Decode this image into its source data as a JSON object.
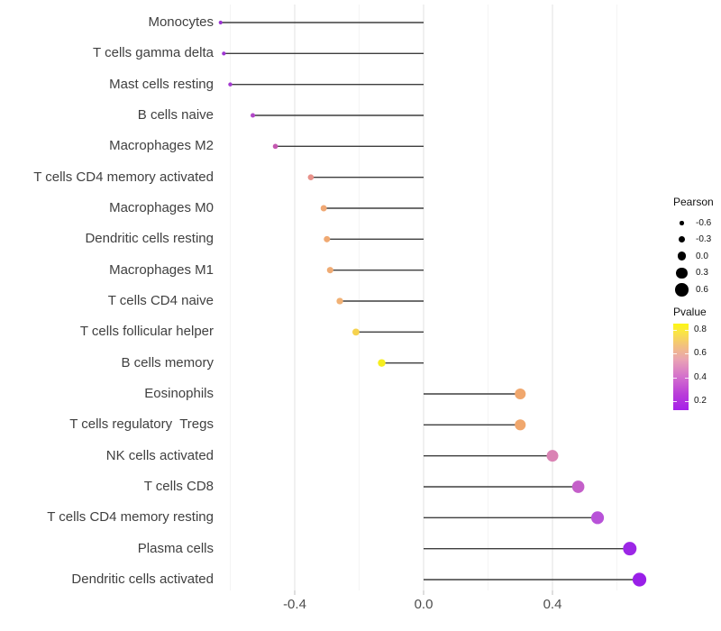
{
  "figure": {
    "background": "#ffffff"
  },
  "styles": {
    "segment_color": "#3e3e3e",
    "grid_major_color": "#e8e8e8",
    "grid_minor_color": "#f4f4f4",
    "axis_tick_color": "#c8c8c8",
    "axis_text_color": "#4d4d4d",
    "legend_dot_color": "#000000"
  },
  "chart_data": {
    "type": "lollipop",
    "orientation": "horizontal",
    "title": "",
    "xlabel": "",
    "ylabel": "",
    "xlim": [
      -0.65,
      0.73
    ],
    "x_major_ticks": [
      -0.4,
      0.0,
      0.4
    ],
    "x_tick_labels": [
      "-0.4",
      "0.0",
      "0.4"
    ],
    "x_minor_ticks": [
      -0.6,
      -0.2,
      0.2,
      0.6
    ],
    "baseline": 0.0,
    "grid": "vertical-only",
    "points": [
      {
        "label": "Monocytes",
        "pearson": -0.63,
        "pvalue": 0.2,
        "color": "#9c35d2"
      },
      {
        "label": "T cells gamma delta",
        "pearson": -0.62,
        "pvalue": 0.2,
        "color": "#9e35d2"
      },
      {
        "label": "Mast cells resting",
        "pearson": -0.6,
        "pvalue": 0.21,
        "color": "#a43bd0"
      },
      {
        "label": "B cells naive",
        "pearson": -0.53,
        "pvalue": 0.26,
        "color": "#b248c8"
      },
      {
        "label": "Macrophages M2",
        "pearson": -0.46,
        "pvalue": 0.33,
        "color": "#c458b1"
      },
      {
        "label": "T cells CD4 memory activated",
        "pearson": -0.35,
        "pvalue": 0.52,
        "color": "#e8918a"
      },
      {
        "label": "Macrophages M0",
        "pearson": -0.31,
        "pvalue": 0.57,
        "color": "#f0a874"
      },
      {
        "label": "Dendritic cells resting",
        "pearson": -0.3,
        "pvalue": 0.57,
        "color": "#f0a972"
      },
      {
        "label": "Macrophages M1",
        "pearson": -0.29,
        "pvalue": 0.58,
        "color": "#efab74"
      },
      {
        "label": "T cells CD4 naive",
        "pearson": -0.26,
        "pvalue": 0.6,
        "color": "#f1b175"
      },
      {
        "label": "T cells follicular helper",
        "pearson": -0.21,
        "pvalue": 0.71,
        "color": "#f6d24e"
      },
      {
        "label": "B cells memory",
        "pearson": -0.13,
        "pvalue": 0.82,
        "color": "#f6ee1e"
      },
      {
        "label": "Eosinophils",
        "pearson": 0.3,
        "pvalue": 0.57,
        "color": "#f0a76d"
      },
      {
        "label": "T cells regulatory  Tregs",
        "pearson": 0.3,
        "pvalue": 0.57,
        "color": "#f0a76d"
      },
      {
        "label": "NK cells activated",
        "pearson": 0.4,
        "pvalue": 0.4,
        "color": "#da83b4"
      },
      {
        "label": "T cells CD8",
        "pearson": 0.48,
        "pvalue": 0.31,
        "color": "#c45fc9"
      },
      {
        "label": "T cells CD4 memory resting",
        "pearson": 0.54,
        "pvalue": 0.27,
        "color": "#b852d8"
      },
      {
        "label": "Plasma cells",
        "pearson": 0.64,
        "pvalue": 0.17,
        "color": "#9c27e6"
      },
      {
        "label": "Dendritic cells activated",
        "pearson": 0.67,
        "pvalue": 0.15,
        "color": "#991fe8"
      }
    ],
    "legends": {
      "size": {
        "title": "Pearson",
        "entries": [
          {
            "label": "-0.6",
            "value": -0.6
          },
          {
            "label": "-0.3",
            "value": -0.3
          },
          {
            "label": "0.0",
            "value": 0.0
          },
          {
            "label": "0.3",
            "value": 0.3
          },
          {
            "label": "0.6",
            "value": 0.6
          }
        ]
      },
      "color": {
        "title": "Pvalue",
        "tick_labels": [
          "0.8",
          "0.6",
          "0.4",
          "0.2"
        ],
        "tick_fractions_from_top": [
          0.07,
          0.34,
          0.62,
          0.9
        ],
        "gradient_low_color": "#a51fe9",
        "gradient_high_color": "#fdf613"
      }
    }
  }
}
